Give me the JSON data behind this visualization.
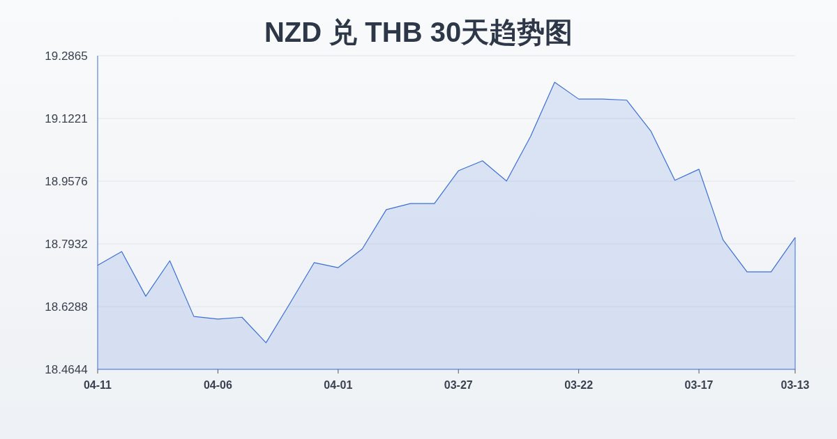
{
  "chart_data": {
    "type": "area",
    "title": "NZD 兑 THB 30天趋势图",
    "categories": [
      "04-11",
      null,
      null,
      null,
      null,
      "04-06",
      null,
      null,
      null,
      null,
      "04-01",
      null,
      null,
      null,
      null,
      "03-27",
      null,
      null,
      null,
      null,
      "03-22",
      null,
      null,
      null,
      null,
      "03-17",
      null,
      null,
      null,
      "03-13"
    ],
    "series": [
      {
        "color": "#3b6fd6",
        "values": [
          18.737,
          18.773,
          18.656,
          18.749,
          18.603,
          18.596,
          18.601,
          18.534,
          18.638,
          18.744,
          18.731,
          18.78,
          18.883,
          18.899,
          18.899,
          18.985,
          19.011,
          18.958,
          19.075,
          19.217,
          19.173,
          19.173,
          19.17,
          19.089,
          18.96,
          18.989,
          18.804,
          18.72,
          18.72,
          18.81
        ]
      }
    ],
    "ylim": [
      18.4644,
      19.2865
    ],
    "yticks": [
      18.4644,
      18.6288,
      18.7932,
      18.9576,
      19.1221,
      19.2865
    ],
    "grid": "y"
  }
}
